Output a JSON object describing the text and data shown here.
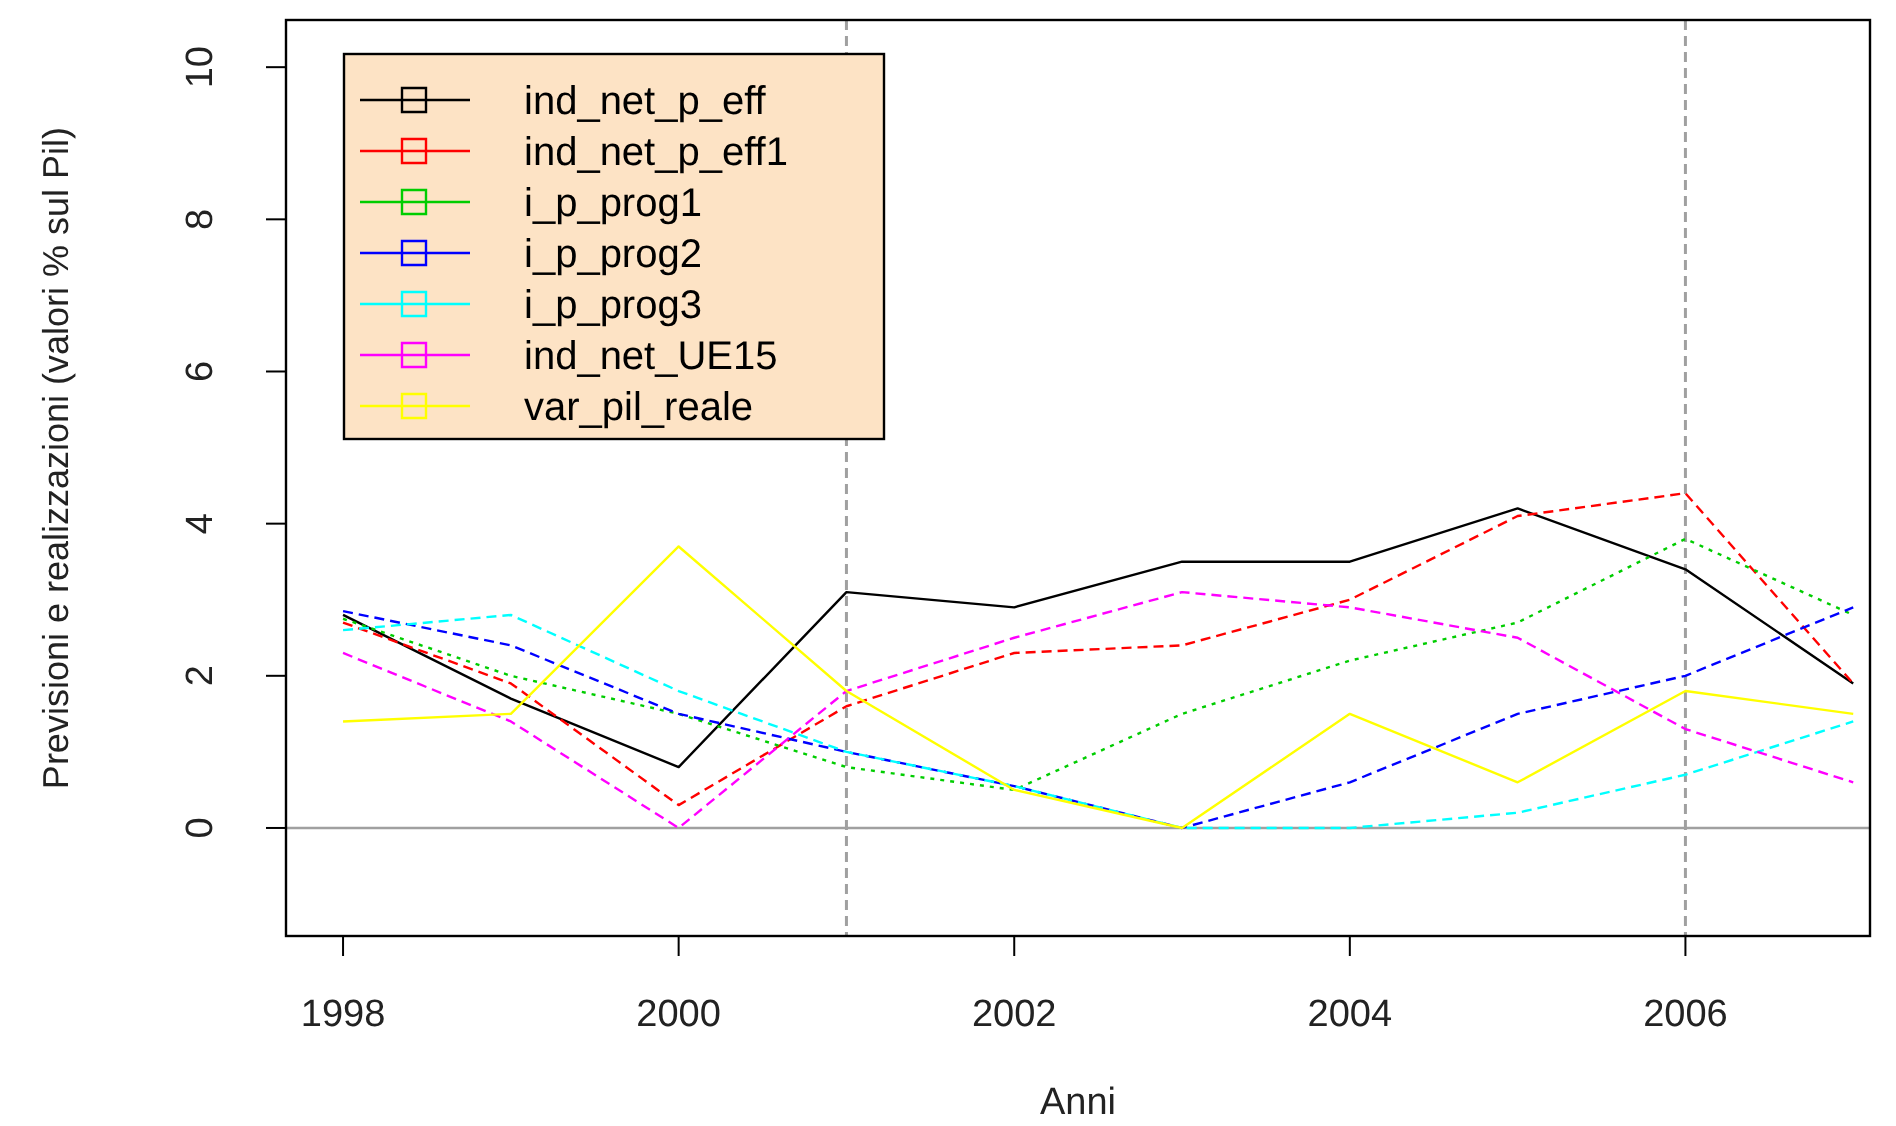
{
  "chart_data": {
    "type": "line",
    "xlabel": "Anni",
    "ylabel": "Previsioni e realizzazioni (valori % sul Pil)",
    "x": [
      1998,
      1999,
      2000,
      2001,
      2002,
      2003,
      2004,
      2005,
      2006,
      2007
    ],
    "series": [
      {
        "name": "ind_net_p_eff",
        "color": "#000000",
        "line_style": "solid",
        "values": [
          2.8,
          1.7,
          0.8,
          3.1,
          2.9,
          3.5,
          3.5,
          4.2,
          3.4,
          1.9
        ]
      },
      {
        "name": "ind_net_p_eff1",
        "color": "#ff0000",
        "line_style": "dashed",
        "values": [
          2.7,
          1.9,
          0.3,
          1.6,
          2.3,
          2.4,
          3.0,
          4.1,
          4.4,
          1.9
        ]
      },
      {
        "name": "i_p_prog1",
        "color": "#00cd00",
        "line_style": "dotted",
        "values": [
          2.75,
          2.0,
          1.5,
          0.8,
          0.5,
          1.5,
          2.2,
          2.7,
          3.8,
          2.8
        ]
      },
      {
        "name": "i_p_prog2",
        "color": "#0000ff",
        "line_style": "dashed",
        "values": [
          2.85,
          2.4,
          1.5,
          1.0,
          0.55,
          0.0,
          0.6,
          1.5,
          2.0,
          2.9
        ]
      },
      {
        "name": "i_p_prog3",
        "color": "#00ffff",
        "line_style": "dashed",
        "values": [
          2.6,
          2.8,
          1.8,
          1.0,
          0.55,
          0.0,
          0.0,
          0.2,
          0.7,
          1.4
        ]
      },
      {
        "name": "ind_net_UE15",
        "color": "#ff00ff",
        "line_style": "dashed",
        "values": [
          2.3,
          1.4,
          0.0,
          1.8,
          2.5,
          3.1,
          2.9,
          2.5,
          1.3,
          0.6
        ]
      },
      {
        "name": "var_pil_reale",
        "color": "#ffff00",
        "line_style": "solid",
        "values": [
          1.4,
          1.5,
          3.7,
          1.8,
          0.5,
          0.0,
          1.5,
          0.6,
          1.8,
          1.5
        ]
      }
    ],
    "xlim": [
      1997.66,
      2007.1
    ],
    "xticks": [
      1998,
      2000,
      2002,
      2004,
      2006
    ],
    "ylim": [
      -1.42,
      10.62
    ],
    "yticks": [
      0,
      2,
      4,
      6,
      8,
      10
    ],
    "ref_lines": [
      {
        "axis": "x",
        "value": 2001,
        "color": "#a0a0a0",
        "line_style": "dashed"
      },
      {
        "axis": "x",
        "value": 2006,
        "color": "#a0a0a0",
        "line_style": "dashed"
      },
      {
        "axis": "y",
        "value": 0,
        "color": "#a0a0a0",
        "line_style": "solid"
      }
    ],
    "legend": "top left",
    "grid": false
  }
}
